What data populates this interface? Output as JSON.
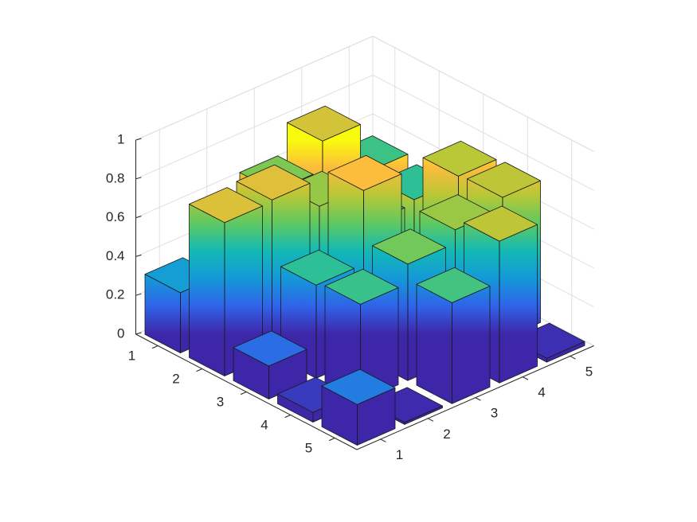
{
  "chart_data": {
    "type": "bar3",
    "title": "",
    "xlabel": "",
    "ylabel": "",
    "zlabel": "",
    "x_ticks": [
      "1",
      "2",
      "3",
      "4",
      "5"
    ],
    "y_ticks": [
      "1",
      "2",
      "3",
      "4",
      "5"
    ],
    "z_ticks": [
      "0",
      "0.2",
      "0.4",
      "0.6",
      "0.8",
      "1"
    ],
    "zlim": [
      0,
      1
    ],
    "grid": true,
    "colormap": "parula",
    "colors": [
      "#3e26a8",
      "#2f63e8",
      "#1598d9",
      "#12b9b4",
      "#5ec962",
      "#b7c736",
      "#fbbc3c",
      "#f9fb0e"
    ],
    "values": [
      [
        0.31,
        0.32,
        0.62,
        0.77,
        0.51
      ],
      [
        0.79,
        0.8,
        0.66,
        0.46,
        0.48
      ],
      [
        0.17,
        0.48,
        0.86,
        0.0,
        0.72
      ],
      [
        0.05,
        0.5,
        0.6,
        0.67,
        0.73
      ],
      [
        0.21,
        0.01,
        0.52,
        0.73,
        0.02
      ]
    ]
  }
}
